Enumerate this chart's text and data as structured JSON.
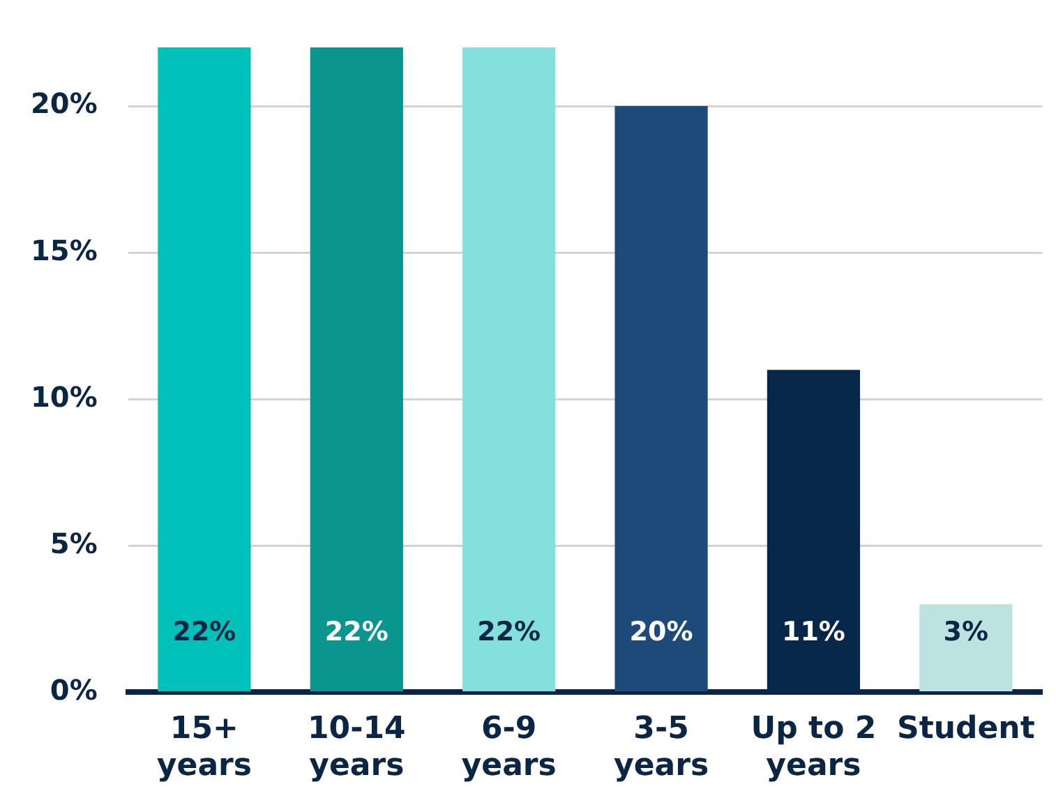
{
  "chart_data": {
    "type": "bar",
    "categories": [
      "15+\nyears",
      "10-14\nyears",
      "6-9\nyears",
      "3-5\nyears",
      "Up to 2\nyears",
      "Student"
    ],
    "values": [
      22,
      22,
      22,
      20,
      11,
      3
    ],
    "colors": [
      "#00c1b9",
      "#0a968f",
      "#84e0dc",
      "#1e4a7a",
      "#06264a",
      "#bde3e1"
    ],
    "value_labels": [
      "22%",
      "22%",
      "22%",
      "20%",
      "11%",
      "3%"
    ],
    "ylim": [
      0,
      22
    ],
    "yticks": [
      {
        "value": 0,
        "label": "0%"
      },
      {
        "value": 5,
        "label": "5%"
      },
      {
        "value": 10,
        "label": "10%"
      },
      {
        "value": 15,
        "label": "15%"
      },
      {
        "value": 20,
        "label": "20%"
      }
    ],
    "grid": "y"
  }
}
